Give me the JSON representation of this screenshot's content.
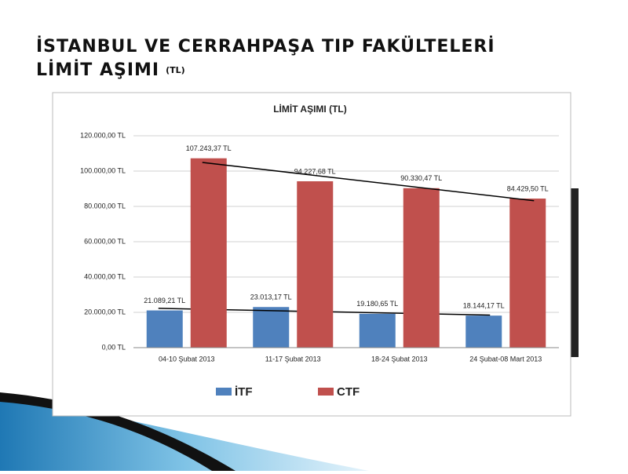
{
  "title_line1": "İSTANBUL VE CERRAHPAŞA TIP FAKÜLTELERİ",
  "title_line2": "LİMİT AŞIMI",
  "title_unit": "(TL)",
  "chart_data": {
    "type": "bar",
    "title": "LİMİT AŞIMI (TL)",
    "categories": [
      "04-10 Şubat 2013",
      "11-17 Şubat 2013",
      "18-24 Şubat 2013",
      "24 Şubat-08 Mart 2013"
    ],
    "series": [
      {
        "name": "İTF",
        "color": "#4f81bd",
        "values": [
          21089.21,
          23013.17,
          19180.65,
          18144.17
        ],
        "value_labels": [
          "21.089,21 TL",
          "23.013,17 TL",
          "19.180,65 TL",
          "18.144,17 TL"
        ]
      },
      {
        "name": "CTF",
        "color": "#c0504d",
        "values": [
          107243.37,
          94227.68,
          90330.47,
          84429.5
        ],
        "value_labels": [
          "107.243,37 TL",
          "94.227,68 TL",
          "90.330,47 TL",
          "84.429,50 TL"
        ]
      }
    ],
    "ylim": [
      0,
      120000
    ],
    "yticks": [
      {
        "value": 0,
        "label": "0,00 TL"
      },
      {
        "value": 20000,
        "label": "20.000,00 TL"
      },
      {
        "value": 40000,
        "label": "40.000,00 TL"
      },
      {
        "value": 60000,
        "label": "60.000,00 TL"
      },
      {
        "value": 80000,
        "label": "80.000,00 TL"
      },
      {
        "value": 100000,
        "label": "100.000,00 TL"
      },
      {
        "value": 120000,
        "label": "120.000,00 TL"
      }
    ],
    "grid": true,
    "trendline": true,
    "legend": "bottom"
  }
}
